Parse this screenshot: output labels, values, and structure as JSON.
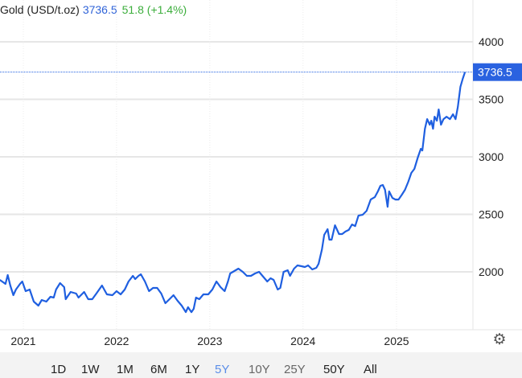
{
  "header": {
    "title": "Gold (USD/t.oz)",
    "price": "3736.5",
    "change": "51.8 (+1.4%)"
  },
  "colors": {
    "line": "#1f5fe0",
    "price_tag": "#2a62e0",
    "change_up": "#3cae3c",
    "grid": "#e6e6e6"
  },
  "ranges": [
    {
      "label": "1D",
      "active": false
    },
    {
      "label": "1W",
      "active": false
    },
    {
      "label": "1M",
      "active": false
    },
    {
      "label": "6M",
      "active": false
    },
    {
      "label": "1Y",
      "active": false
    },
    {
      "label": "5Y",
      "active": true
    },
    {
      "label": "10Y",
      "active": false
    },
    {
      "label": "25Y",
      "active": false
    },
    {
      "label": "50Y",
      "active": false
    },
    {
      "label": "All",
      "active": false
    }
  ],
  "settings_icon": "gear-icon",
  "chart_data": {
    "type": "line",
    "title": "",
    "xlabel": "",
    "ylabel": "",
    "x_ticks": [
      "2021",
      "2022",
      "2023",
      "2024",
      "2025"
    ],
    "y_ticks": [
      "2000",
      "2500",
      "3000",
      "3500",
      "4000"
    ],
    "ylim": [
      1635,
      4265
    ],
    "xlim": [
      "2020-10-01",
      "2025-12-27"
    ],
    "grid": true,
    "last_value_label": "3736.5",
    "series": [
      {
        "points": [
          [
            "2020-10-01",
            1930
          ],
          [
            "2020-10-10",
            1916
          ],
          [
            "2020-10-23",
            1895
          ],
          [
            "2020-11-01",
            1972
          ],
          [
            "2020-11-11",
            1881
          ],
          [
            "2020-11-23",
            1797
          ],
          [
            "2020-12-03",
            1846
          ],
          [
            "2020-12-19",
            1895
          ],
          [
            "2020-12-28",
            1916
          ],
          [
            "2021-01-10",
            1832
          ],
          [
            "2021-01-26",
            1846
          ],
          [
            "2021-02-11",
            1741
          ],
          [
            "2021-03-01",
            1706
          ],
          [
            "2021-03-14",
            1755
          ],
          [
            "2021-04-01",
            1741
          ],
          [
            "2021-04-17",
            1783
          ],
          [
            "2021-04-30",
            1776
          ],
          [
            "2021-05-09",
            1846
          ],
          [
            "2021-05-25",
            1902
          ],
          [
            "2021-06-10",
            1867
          ],
          [
            "2021-06-16",
            1762
          ],
          [
            "2021-07-05",
            1825
          ],
          [
            "2021-07-27",
            1811
          ],
          [
            "2021-08-05",
            1776
          ],
          [
            "2021-08-27",
            1825
          ],
          [
            "2021-09-12",
            1762
          ],
          [
            "2021-09-28",
            1762
          ],
          [
            "2021-10-14",
            1811
          ],
          [
            "2021-11-05",
            1881
          ],
          [
            "2021-11-24",
            1804
          ],
          [
            "2021-12-16",
            1797
          ],
          [
            "2022-01-01",
            1832
          ],
          [
            "2022-01-17",
            1804
          ],
          [
            "2022-02-02",
            1846
          ],
          [
            "2022-02-17",
            1916
          ],
          [
            "2022-03-06",
            1965
          ],
          [
            "2022-03-15",
            1937
          ],
          [
            "2022-03-28",
            1965
          ],
          [
            "2022-04-06",
            1979
          ],
          [
            "2022-04-22",
            1916
          ],
          [
            "2022-05-08",
            1832
          ],
          [
            "2022-05-24",
            1860
          ],
          [
            "2022-06-09",
            1860
          ],
          [
            "2022-06-25",
            1811
          ],
          [
            "2022-07-11",
            1727
          ],
          [
            "2022-07-27",
            1762
          ],
          [
            "2022-08-12",
            1797
          ],
          [
            "2022-08-28",
            1748
          ],
          [
            "2022-09-13",
            1706
          ],
          [
            "2022-09-29",
            1650
          ],
          [
            "2022-10-08",
            1692
          ],
          [
            "2022-10-21",
            1650
          ],
          [
            "2022-10-30",
            1678
          ],
          [
            "2022-11-08",
            1776
          ],
          [
            "2022-11-21",
            1762
          ],
          [
            "2022-12-07",
            1804
          ],
          [
            "2022-12-26",
            1804
          ],
          [
            "2023-01-11",
            1846
          ],
          [
            "2023-01-27",
            1916
          ],
          [
            "2023-02-12",
            1867
          ],
          [
            "2023-02-28",
            1832
          ],
          [
            "2023-03-13",
            1916
          ],
          [
            "2023-03-22",
            1986
          ],
          [
            "2023-04-07",
            2007
          ],
          [
            "2023-04-23",
            2028
          ],
          [
            "2023-05-10",
            2000
          ],
          [
            "2023-05-26",
            1965
          ],
          [
            "2023-06-11",
            1965
          ],
          [
            "2023-06-27",
            1986
          ],
          [
            "2023-07-13",
            2000
          ],
          [
            "2023-07-29",
            1958
          ],
          [
            "2023-08-14",
            1916
          ],
          [
            "2023-08-27",
            1944
          ],
          [
            "2023-09-08",
            1930
          ],
          [
            "2023-09-24",
            1846
          ],
          [
            "2023-10-04",
            1860
          ],
          [
            "2023-10-17",
            2000
          ],
          [
            "2023-11-02",
            2014
          ],
          [
            "2023-11-11",
            1965
          ],
          [
            "2023-11-27",
            2028
          ],
          [
            "2023-12-10",
            2056
          ],
          [
            "2023-12-26",
            2049
          ],
          [
            "2024-01-08",
            2042
          ],
          [
            "2024-01-21",
            2056
          ],
          [
            "2024-02-06",
            2021
          ],
          [
            "2024-02-22",
            2035
          ],
          [
            "2024-03-02",
            2070
          ],
          [
            "2024-03-15",
            2196
          ],
          [
            "2024-03-24",
            2322
          ],
          [
            "2024-04-06",
            2371
          ],
          [
            "2024-04-13",
            2280
          ],
          [
            "2024-04-22",
            2280
          ],
          [
            "2024-05-05",
            2405
          ],
          [
            "2024-05-21",
            2329
          ],
          [
            "2024-06-02",
            2329
          ],
          [
            "2024-06-15",
            2350
          ],
          [
            "2024-06-28",
            2364
          ],
          [
            "2024-07-11",
            2412
          ],
          [
            "2024-07-23",
            2398
          ],
          [
            "2024-08-05",
            2489
          ],
          [
            "2024-08-21",
            2496
          ],
          [
            "2024-09-06",
            2531
          ],
          [
            "2024-09-22",
            2629
          ],
          [
            "2024-10-08",
            2650
          ],
          [
            "2024-10-20",
            2699
          ],
          [
            "2024-10-30",
            2748
          ],
          [
            "2024-11-08",
            2755
          ],
          [
            "2024-11-17",
            2713
          ],
          [
            "2024-11-27",
            2566
          ],
          [
            "2024-12-03",
            2699
          ],
          [
            "2024-12-16",
            2643
          ],
          [
            "2024-12-28",
            2629
          ],
          [
            "2025-01-09",
            2629
          ],
          [
            "2025-01-22",
            2671
          ],
          [
            "2025-02-03",
            2713
          ],
          [
            "2025-02-16",
            2783
          ],
          [
            "2025-02-28",
            2860
          ],
          [
            "2025-03-12",
            2895
          ],
          [
            "2025-03-25",
            2993
          ],
          [
            "2025-04-06",
            3070
          ],
          [
            "2025-04-12",
            3055
          ],
          [
            "2025-04-22",
            3244
          ],
          [
            "2025-05-01",
            3328
          ],
          [
            "2025-05-11",
            3279
          ],
          [
            "2025-05-17",
            3314
          ],
          [
            "2025-05-24",
            3244
          ],
          [
            "2025-05-30",
            3349
          ],
          [
            "2025-06-08",
            3314
          ],
          [
            "2025-06-15",
            3412
          ],
          [
            "2025-06-24",
            3279
          ],
          [
            "2025-07-04",
            3328
          ],
          [
            "2025-07-16",
            3349
          ],
          [
            "2025-07-29",
            3328
          ],
          [
            "2025-08-10",
            3370
          ],
          [
            "2025-08-20",
            3328
          ],
          [
            "2025-08-29",
            3433
          ],
          [
            "2025-09-08",
            3608
          ],
          [
            "2025-09-17",
            3678
          ],
          [
            "2025-09-26",
            3736.5
          ]
        ]
      }
    ]
  }
}
